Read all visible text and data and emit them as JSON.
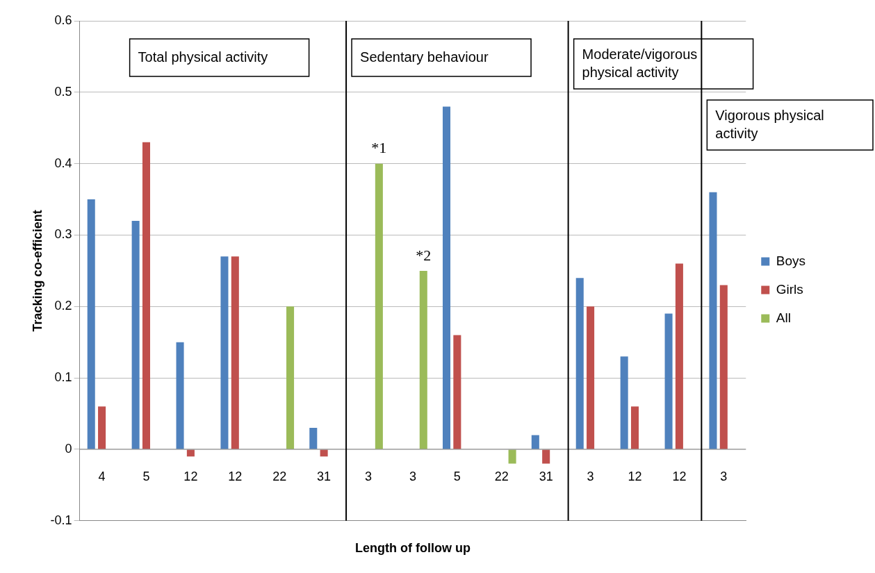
{
  "chart_data": {
    "type": "bar",
    "xlabel": "Length of follow up",
    "ylabel": "Tracking co-efficient",
    "categories": [
      "4",
      "5",
      "12",
      "12",
      "22",
      "31",
      "3",
      "3",
      "5",
      "22",
      "31",
      "3",
      "12",
      "12",
      "3"
    ],
    "series": [
      {
        "name": "Boys",
        "color": "#4f81bd",
        "values": [
          0.35,
          0.32,
          0.15,
          0.27,
          null,
          0.03,
          null,
          null,
          0.48,
          null,
          0.02,
          0.24,
          0.13,
          0.19,
          0.36
        ]
      },
      {
        "name": "Girls",
        "color": "#c0504d",
        "values": [
          0.06,
          0.43,
          -0.01,
          0.27,
          null,
          -0.01,
          null,
          null,
          0.16,
          null,
          -0.02,
          0.2,
          0.06,
          0.26,
          0.23
        ]
      },
      {
        "name": "All",
        "color": "#9bbb59",
        "values": [
          null,
          null,
          null,
          null,
          0.2,
          null,
          0.4,
          0.25,
          null,
          -0.02,
          null,
          null,
          null,
          null,
          null
        ]
      }
    ],
    "ylim": [
      -0.1,
      0.6
    ],
    "yticks": [
      -0.1,
      0,
      0.1,
      0.2,
      0.3,
      0.4,
      0.5,
      0.6
    ],
    "grid": "y",
    "legend": "right",
    "annotations": [
      "Total physical activity",
      "Sedentary behaviour",
      "Moderate/vigorous physical activity",
      "Vigorous physical activity",
      "*1",
      "*2"
    ]
  }
}
